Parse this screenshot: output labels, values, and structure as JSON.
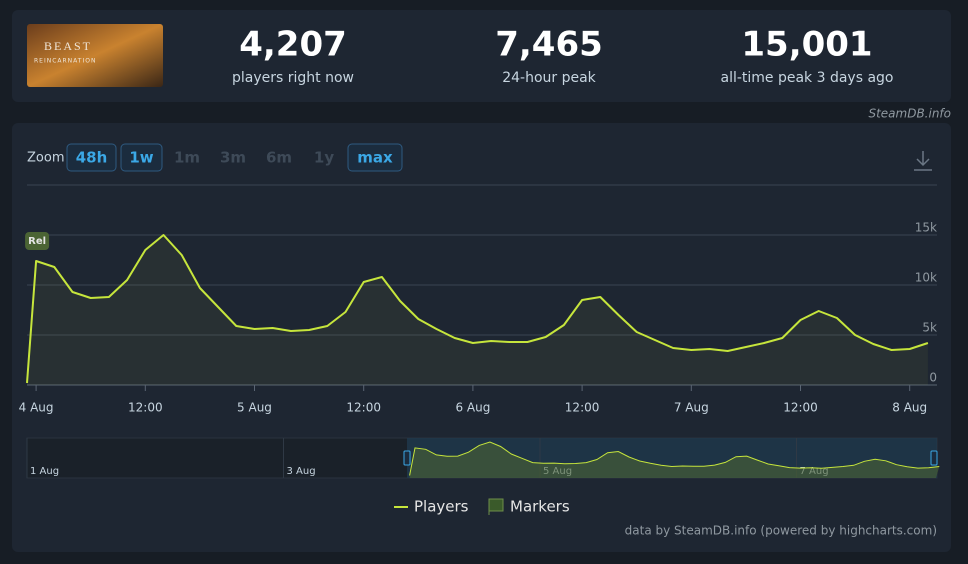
{
  "header": {
    "thumbnail": {
      "title": "BEAST",
      "subtitle": "REINCARNATION"
    },
    "stats": [
      {
        "value": "4,207",
        "label": "players right now"
      },
      {
        "value": "7,465",
        "label": "24-hour peak"
      },
      {
        "value": "15,001",
        "label": "all-time peak 3 days ago"
      }
    ],
    "source": "SteamDB.info"
  },
  "zoom": {
    "label": "Zoom",
    "options": [
      {
        "label": "48h",
        "enabled": true
      },
      {
        "label": "1w",
        "enabled": true
      },
      {
        "label": "1m",
        "enabled": false
      },
      {
        "label": "3m",
        "enabled": false
      },
      {
        "label": "6m",
        "enabled": false
      },
      {
        "label": "1y",
        "enabled": false
      },
      {
        "label": "max",
        "enabled": true
      }
    ]
  },
  "chart_data": {
    "type": "line",
    "x": [
      -1,
      0,
      2,
      4,
      6,
      8,
      10,
      12,
      14,
      16,
      18,
      20,
      22,
      24,
      26,
      28,
      30,
      32,
      34,
      36,
      38,
      40,
      42,
      44,
      46,
      48,
      50,
      52,
      54,
      56,
      58,
      60,
      62,
      64,
      66,
      68,
      70,
      72,
      74,
      76,
      78,
      80,
      82,
      84,
      86,
      88,
      90,
      92,
      94,
      96,
      98
    ],
    "series": [
      {
        "name": "Players",
        "color": "#c6e53c",
        "values": [
          200,
          12400,
          11800,
          9300,
          8700,
          8800,
          10500,
          13500,
          15000,
          13000,
          9700,
          7800,
          5900,
          5600,
          5700,
          5400,
          5500,
          5900,
          7300,
          10300,
          10800,
          8400,
          6600,
          5600,
          4700,
          4200,
          4400,
          4300,
          4300,
          4800,
          6000,
          8500,
          8800,
          7000,
          5300,
          4500,
          3700,
          3500,
          3600,
          3400,
          3800,
          4200,
          4700,
          6500,
          7400,
          6700,
          5000,
          4100,
          3500,
          3600,
          4200
        ]
      }
    ],
    "xlim": [
      -1,
      99
    ],
    "xticks": [
      {
        "value": 0,
        "label": "4 Aug"
      },
      {
        "value": 12,
        "label": "12:00"
      },
      {
        "value": 24,
        "label": "5 Aug"
      },
      {
        "value": 36,
        "label": "12:00"
      },
      {
        "value": 48,
        "label": "6 Aug"
      },
      {
        "value": 60,
        "label": "12:00"
      },
      {
        "value": 72,
        "label": "7 Aug"
      },
      {
        "value": 84,
        "label": "12:00"
      },
      {
        "value": 96,
        "label": "8 Aug"
      }
    ],
    "ylim": [
      0,
      15000
    ],
    "yticks": [
      0,
      {
        "value": 5000,
        "label": "5k"
      },
      {
        "value": 10000,
        "label": "10k"
      },
      {
        "value": 15000,
        "label": "15k"
      }
    ],
    "grid": true,
    "annotations": [
      {
        "label": "Rel",
        "x": 0
      }
    ],
    "marker_legend": "Markers",
    "navigator": {
      "labels": [
        "1 Aug",
        "3 Aug",
        "5 Aug",
        "7 Aug"
      ]
    },
    "credit": "data by SteamDB.info (powered by highcharts.com)"
  }
}
